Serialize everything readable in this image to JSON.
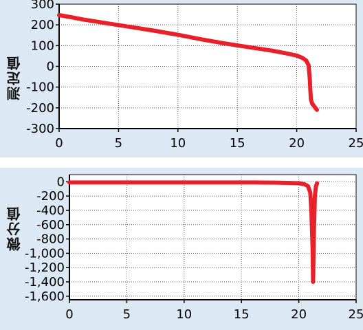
{
  "chart_data": [
    {
      "type": "line",
      "ylabel": "测定值",
      "xlabel": "",
      "xlim": [
        0,
        25
      ],
      "ylim": [
        -300,
        300
      ],
      "x_ticks": [
        0,
        5,
        10,
        15,
        20,
        25
      ],
      "y_ticks": [
        300,
        200,
        100,
        0,
        -100,
        -200,
        -300
      ],
      "y_tick_labels": [
        "300",
        "200",
        "100",
        "0",
        "-100",
        "-200",
        "-300"
      ],
      "grid": true,
      "series": [
        {
          "color": "#e8202a",
          "x": [
            0,
            1,
            2,
            4,
            6,
            8,
            10,
            12,
            14,
            16,
            18,
            19,
            20,
            20.5,
            20.8,
            21.0,
            21.1,
            21.15,
            21.2,
            21.3,
            21.5,
            21.7
          ],
          "y": [
            247,
            237,
            226,
            208,
            190,
            172,
            152,
            130,
            110,
            92,
            75,
            64,
            52,
            40,
            28,
            5,
            -60,
            -120,
            -160,
            -180,
            -195,
            -210
          ]
        }
      ]
    },
    {
      "type": "line",
      "ylabel": "微分值",
      "xlabel": "",
      "xlim": [
        0,
        25
      ],
      "ylim": [
        -1650,
        100
      ],
      "x_ticks": [
        0,
        5,
        10,
        15,
        20,
        25
      ],
      "y_ticks": [
        0,
        -200,
        -400,
        -600,
        -800,
        -1000,
        -1200,
        -1400,
        -1600
      ],
      "y_tick_labels": [
        "0",
        "-200",
        "-400",
        "-600",
        "-800",
        "-1,000",
        "-1,200",
        "-1,400",
        "-1,600"
      ],
      "grid": true,
      "series": [
        {
          "color": "#e8202a",
          "x": [
            0,
            2,
            4,
            6,
            8,
            10,
            12,
            14,
            16,
            18,
            19,
            20,
            20.5,
            20.8,
            21.0,
            21.1,
            21.2,
            21.25,
            21.3,
            21.4,
            21.5,
            21.6
          ],
          "y": [
            -10,
            -10,
            -10,
            -10,
            -10,
            -10,
            -10,
            -10,
            -10,
            -12,
            -15,
            -20,
            -35,
            -60,
            -150,
            -400,
            -900,
            -1400,
            -800,
            -200,
            -60,
            -20
          ]
        }
      ]
    }
  ]
}
